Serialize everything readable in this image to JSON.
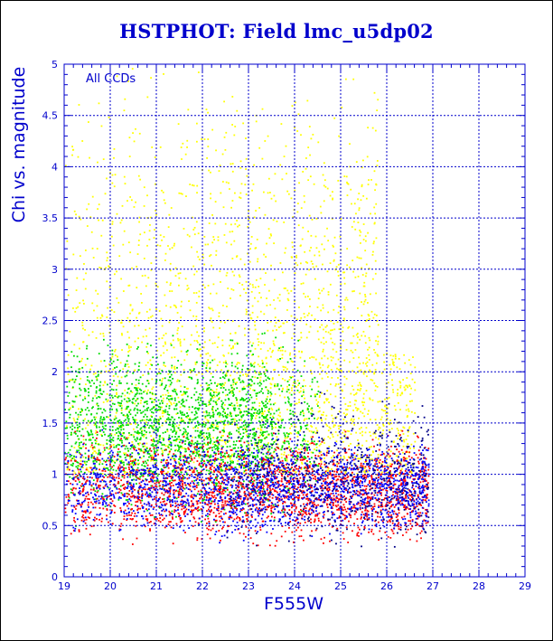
{
  "chart_data": {
    "type": "scatter",
    "title": "HSTPHOT: Field lmc_u5dp02",
    "xlabel": "F555W",
    "ylabel": "Chi vs. magnitude",
    "annotation": "All CCDs",
    "xlim": [
      19,
      29
    ],
    "ylim": [
      0,
      5
    ],
    "x_ticks": [
      "19",
      "20",
      "21",
      "22",
      "23",
      "24",
      "25",
      "26",
      "27",
      "28",
      "29"
    ],
    "y_ticks": [
      "0",
      "0.5",
      "1",
      "1.5",
      "2",
      "2.5",
      "3",
      "3.5",
      "4",
      "4.5",
      "5"
    ],
    "grid": "dashed",
    "axis_color": "#0000cc",
    "series": [
      {
        "color": "#ffff00",
        "x_range": [
          19,
          26.6
        ],
        "y_center": 2.6,
        "y_spread": 1.1,
        "note_points": 2600
      },
      {
        "color": "#00dd00",
        "x_range": [
          19,
          24.5
        ],
        "y_center": 1.45,
        "y_spread": 0.35,
        "note_points": 2400
      },
      {
        "color": "#ff0000",
        "x_range": [
          19,
          26.9
        ],
        "y_center": 0.85,
        "y_spread": 0.22,
        "note_points": 2200
      },
      {
        "color": "#0000ff",
        "x_range": [
          19,
          26.9
        ],
        "y_center": 0.9,
        "y_spread": 0.2,
        "note_points": 1800
      },
      {
        "color": "#000088",
        "x_range": [
          22.5,
          26.9
        ],
        "y_center": 1.0,
        "y_spread": 0.3,
        "note_points": 500
      }
    ]
  }
}
